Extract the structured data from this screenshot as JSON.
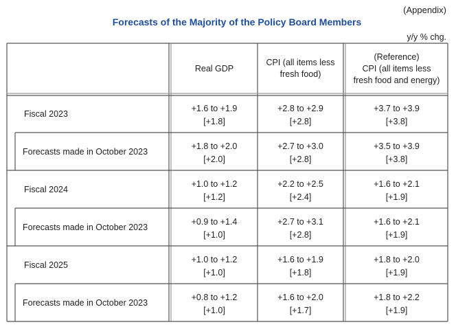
{
  "header": {
    "appendix": "(Appendix)",
    "title": "Forecasts of the Majority of the Policy Board Members",
    "unit": "y/y % chg."
  },
  "table": {
    "columns": [
      "Real GDP",
      "CPI (all items less fresh food)",
      "(Reference)\nCPI (all items less\nfresh food and energy)"
    ],
    "rows": [
      {
        "label": "Fiscal 2023",
        "cells": [
          {
            "range": "+1.6 to +1.9",
            "median": "[+1.8]"
          },
          {
            "range": "+2.8 to +2.9",
            "median": "[+2.8]"
          },
          {
            "range": "+3.7 to +3.9",
            "median": "[+3.8]"
          }
        ]
      },
      {
        "label": "Forecasts made in October 2023",
        "cells": [
          {
            "range": "+1.8 to +2.0",
            "median": "[+2.0]"
          },
          {
            "range": "+2.7 to +3.0",
            "median": "[+2.8]"
          },
          {
            "range": "+3.5 to +3.9",
            "median": "[+3.8]"
          }
        ]
      },
      {
        "label": "Fiscal 2024",
        "cells": [
          {
            "range": "+1.0 to +1.2",
            "median": "[+1.2]"
          },
          {
            "range": "+2.2 to +2.5",
            "median": "[+2.4]"
          },
          {
            "range": "+1.6 to +2.1",
            "median": "[+1.9]"
          }
        ]
      },
      {
        "label": "Forecasts made in October 2023",
        "cells": [
          {
            "range": "+0.9 to +1.4",
            "median": "[+1.0]"
          },
          {
            "range": "+2.7 to +3.1",
            "median": "[+2.8]"
          },
          {
            "range": "+1.6 to +2.1",
            "median": "[+1.9]"
          }
        ]
      },
      {
        "label": "Fiscal 2025",
        "cells": [
          {
            "range": "+1.0 to +1.2",
            "median": "[+1.0]"
          },
          {
            "range": "+1.6 to +1.9",
            "median": "[+1.8]"
          },
          {
            "range": "+1.8 to +2.0",
            "median": "[+1.9]"
          }
        ]
      },
      {
        "label": "Forecasts made in October 2023",
        "cells": [
          {
            "range": "+0.8 to +1.2",
            "median": "[+1.0]"
          },
          {
            "range": "+1.6 to +2.0",
            "median": "[+1.7]"
          },
          {
            "range": "+1.8 to +2.2",
            "median": "[+1.9]"
          }
        ]
      }
    ]
  }
}
